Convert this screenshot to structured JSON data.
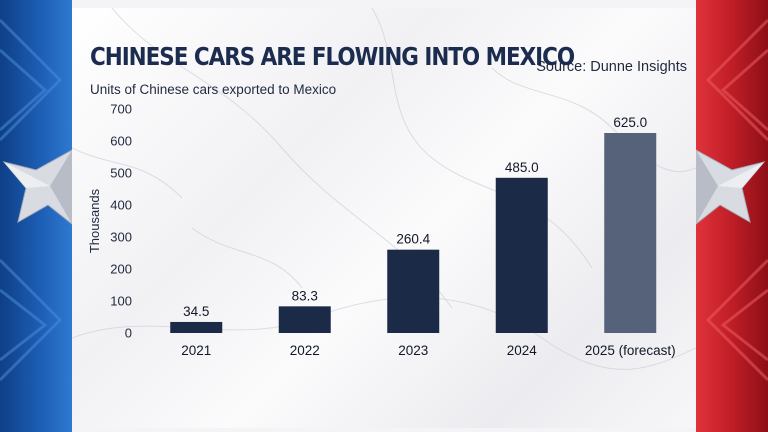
{
  "header": {
    "title": "CHINESE CARS ARE FLOWING INTO MEXICO",
    "source": "Source: Dunne Insights",
    "subtitle": "Units of Chinese cars exported to Mexico"
  },
  "colors": {
    "bar": "#1a2a47",
    "bar_forecast": "#55627a",
    "flag_blue": "#1e60b8",
    "flag_red": "#c31f28"
  },
  "chart_data": {
    "type": "bar",
    "title": "CHINESE CARS ARE FLOWING INTO MEXICO",
    "subtitle": "Units of Chinese cars exported to Mexico",
    "xlabel": "",
    "ylabel": "Thousands",
    "categories": [
      "2021",
      "2022",
      "2023",
      "2024",
      "2025 (forecast)"
    ],
    "values": [
      34.5,
      83.3,
      260.4,
      485.0,
      625.0
    ],
    "value_labels": [
      "34.5",
      "83.3",
      "260.4",
      "485.0",
      "625.0"
    ],
    "forecast_index": 4,
    "ylim": [
      0,
      700
    ],
    "yticks": [
      0,
      100,
      200,
      300,
      400,
      500,
      600,
      700
    ],
    "grid": false,
    "legend": "none"
  }
}
